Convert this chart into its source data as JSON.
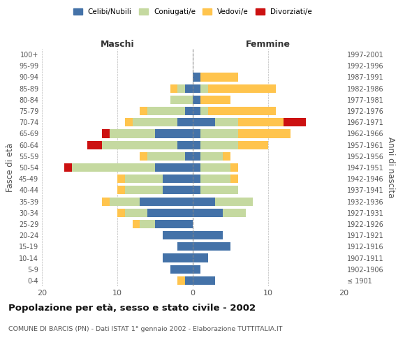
{
  "age_groups": [
    "100+",
    "95-99",
    "90-94",
    "85-89",
    "80-84",
    "75-79",
    "70-74",
    "65-69",
    "60-64",
    "55-59",
    "50-54",
    "45-49",
    "40-44",
    "35-39",
    "30-34",
    "25-29",
    "20-24",
    "15-19",
    "10-14",
    "5-9",
    "0-4"
  ],
  "birth_years": [
    "≤ 1901",
    "1902-1906",
    "1907-1911",
    "1912-1916",
    "1917-1921",
    "1922-1926",
    "1927-1931",
    "1932-1936",
    "1937-1941",
    "1942-1946",
    "1947-1951",
    "1952-1956",
    "1957-1961",
    "1962-1966",
    "1967-1971",
    "1972-1976",
    "1977-1981",
    "1982-1986",
    "1987-1991",
    "1992-1996",
    "1997-2001"
  ],
  "maschi": {
    "celibi": [
      0,
      0,
      0,
      1,
      0,
      1,
      2,
      5,
      2,
      1,
      5,
      4,
      4,
      7,
      6,
      5,
      4,
      2,
      4,
      3,
      1
    ],
    "coniugati": [
      0,
      0,
      0,
      1,
      3,
      5,
      6,
      6,
      10,
      5,
      11,
      5,
      5,
      4,
      3,
      2,
      0,
      0,
      0,
      0,
      0
    ],
    "vedovi": [
      0,
      0,
      0,
      1,
      0,
      1,
      1,
      0,
      0,
      1,
      0,
      1,
      1,
      1,
      1,
      1,
      0,
      0,
      0,
      0,
      1
    ],
    "divorziati": [
      0,
      0,
      0,
      0,
      0,
      0,
      0,
      1,
      2,
      0,
      1,
      0,
      0,
      0,
      0,
      0,
      0,
      0,
      0,
      0,
      0
    ]
  },
  "femmine": {
    "nubili": [
      0,
      0,
      1,
      1,
      1,
      1,
      3,
      1,
      1,
      1,
      1,
      1,
      1,
      3,
      4,
      0,
      4,
      5,
      2,
      1,
      3
    ],
    "coniugate": [
      0,
      0,
      0,
      1,
      0,
      1,
      3,
      5,
      5,
      3,
      4,
      4,
      5,
      5,
      3,
      0,
      0,
      0,
      0,
      0,
      0
    ],
    "vedove": [
      0,
      0,
      5,
      9,
      4,
      9,
      6,
      7,
      4,
      1,
      1,
      1,
      0,
      0,
      0,
      0,
      0,
      0,
      0,
      0,
      0
    ],
    "divorziate": [
      0,
      0,
      0,
      0,
      0,
      0,
      3,
      0,
      0,
      0,
      0,
      0,
      0,
      0,
      0,
      0,
      0,
      0,
      0,
      0,
      0
    ]
  },
  "colors": {
    "celibi": "#4472a8",
    "coniugati": "#c5d9a0",
    "vedovi": "#ffc44d",
    "divorziati": "#cc1111"
  },
  "xlim": 20,
  "title": "Popolazione per età, sesso e stato civile - 2002",
  "subtitle": "COMUNE DI BARCIS (PN) - Dati ISTAT 1° gennaio 2002 - Elaborazione TUTTITALIA.IT",
  "ylabel_left": "Fasce di età",
  "ylabel_right": "Anni di nascita",
  "xlabel_left": "Maschi",
  "xlabel_right": "Femmine",
  "background_color": "#ffffff"
}
